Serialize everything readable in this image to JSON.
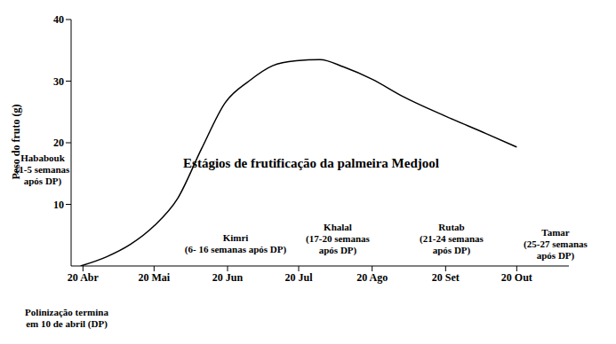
{
  "chart_data": {
    "type": "line",
    "title": "Estágios de frutificação da palmeira Medjool",
    "y_label": "Peso do fruto (g)",
    "x": [
      109,
      120,
      130,
      140,
      150,
      160,
      170,
      180,
      190,
      200,
      210,
      220,
      232,
      245,
      263,
      280,
      293
    ],
    "series": [
      {
        "name": "Peso do fruto",
        "color": "#000000",
        "values": [
          0,
          1.5,
          3.5,
          6.5,
          11,
          19,
          26.5,
          30,
          32.5,
          33.3,
          33.5,
          32.3,
          30.3,
          27.5,
          24.3,
          21.5,
          19.3
        ]
      }
    ],
    "xlim": [
      105,
      315
    ],
    "xticks": [
      {
        "value": 110,
        "label": "20 Abr"
      },
      {
        "value": 140,
        "label": "20 Mai"
      },
      {
        "value": 171,
        "label": "20 Jun"
      },
      {
        "value": 201,
        "label": "20 Jul"
      },
      {
        "value": 232,
        "label": "20 Ago"
      },
      {
        "value": 263,
        "label": "20 Set"
      },
      {
        "value": 293,
        "label": "20 Out"
      }
    ],
    "ylim": [
      0,
      40
    ],
    "yticks": [
      10,
      20,
      30,
      40
    ],
    "grid": false,
    "annotations": [
      [
        "Hababouk",
        "(1-5 semanas",
        "após DP)"
      ],
      [
        "Kimri",
        "(6- 16 semanas após DP)"
      ],
      [
        "Khalal",
        "(17-20 semanas",
        "após DP)"
      ],
      [
        "Rutab",
        "(21-24 semanas",
        "após DP)"
      ],
      [
        "Tamar",
        "(25-27 semanas",
        "após DP)"
      ],
      [
        "Polinização termina",
        "em 10 de abril (DP)"
      ]
    ]
  }
}
